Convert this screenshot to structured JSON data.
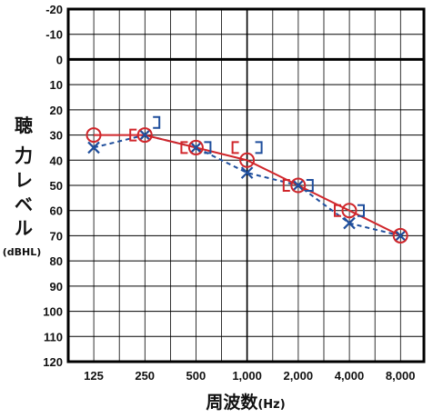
{
  "chart_data": {
    "type": "line",
    "xlabel": "周波数",
    "xlabel_unit": "(Hz)",
    "ylabel_chars": [
      "聴",
      "力",
      "レ",
      "ベ",
      "ル"
    ],
    "ylabel_unit": "(dBHL)",
    "categories": [
      "125",
      "250",
      "500",
      "1,000",
      "2,000",
      "4,000",
      "8,000"
    ],
    "y_ticks": [
      "-20",
      "-10",
      "0",
      "10",
      "20",
      "30",
      "40",
      "50",
      "60",
      "70",
      "80",
      "90",
      "100",
      "110",
      "120"
    ],
    "ylim": [
      -20,
      120
    ],
    "y_inverted": true,
    "grid": true,
    "series": [
      {
        "marker": "circle",
        "color": "#d0262b",
        "line": "solid",
        "values": [
          30,
          30,
          35,
          40,
          50,
          60,
          70
        ]
      },
      {
        "marker": "x",
        "color": "#1f4e9c",
        "line": "dashed",
        "values": [
          35,
          30,
          35,
          45,
          50,
          65,
          70
        ]
      }
    ],
    "bone_conduction": [
      {
        "marker": "[",
        "color": "#d0262b",
        "values": [
          null,
          30,
          35,
          35,
          50,
          60,
          null
        ]
      },
      {
        "marker": "]",
        "color": "#1f4e9c",
        "values": [
          null,
          25,
          35,
          35,
          50,
          60,
          null
        ]
      }
    ]
  }
}
